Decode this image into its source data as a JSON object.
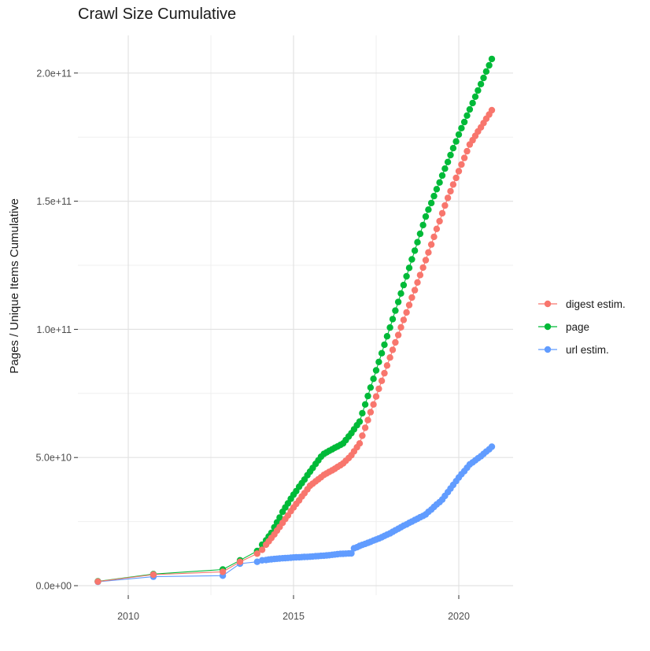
{
  "chart_data": {
    "type": "scatter",
    "title": "Crawl Size Cumulative",
    "xlabel": "",
    "ylabel": "Pages / Unique Items Cumulative",
    "y_value_unit": "1e9 (billions of pages / unique items)",
    "xlim": [
      2008.5,
      2021.6
    ],
    "ylim": [
      -8,
      213
    ],
    "grid": true,
    "legend_position": "right",
    "x_ticks": {
      "values": [
        2010,
        2015,
        2020
      ],
      "labels": [
        "2010",
        "2015",
        "2020"
      ]
    },
    "x_minor": [
      2012.5,
      2017.5
    ],
    "y_ticks": {
      "values": [
        0,
        50,
        100,
        150,
        200
      ],
      "labels": [
        "0.0e+00",
        "5.0e+10",
        "1.0e+11",
        "1.5e+11",
        "2.0e+11"
      ]
    },
    "y_minor": [
      25,
      75,
      125,
      175
    ],
    "series": [
      {
        "name": "digest estim.",
        "color": "#F8766D",
        "points": [
          [
            2009.08,
            1.6
          ],
          [
            2010.76,
            4.3
          ],
          [
            2012.86,
            5.4
          ],
          [
            2013.38,
            9.3
          ],
          [
            2013.9,
            12.5
          ],
          [
            2014.05,
            14
          ],
          [
            2014.17,
            16
          ],
          [
            2014.25,
            17.3
          ],
          [
            2014.33,
            18.6
          ],
          [
            2014.42,
            20
          ],
          [
            2014.5,
            21.5
          ],
          [
            2014.58,
            22.9
          ],
          [
            2014.67,
            24.5
          ],
          [
            2014.75,
            26
          ],
          [
            2014.83,
            27.4
          ],
          [
            2014.92,
            29.1
          ],
          [
            2015,
            30.5
          ],
          [
            2015.08,
            31.9
          ],
          [
            2015.17,
            33.3
          ],
          [
            2015.25,
            34.8
          ],
          [
            2015.33,
            36.1
          ],
          [
            2015.42,
            37.6
          ],
          [
            2015.5,
            39
          ],
          [
            2015.58,
            39.8
          ],
          [
            2015.67,
            40.7
          ],
          [
            2015.75,
            41.5
          ],
          [
            2015.83,
            42.3
          ],
          [
            2015.92,
            43.2
          ],
          [
            2016,
            43.8
          ],
          [
            2016.08,
            44.4
          ],
          [
            2016.17,
            45
          ],
          [
            2016.25,
            45.6
          ],
          [
            2016.33,
            46.3
          ],
          [
            2016.42,
            47
          ],
          [
            2016.5,
            47.7
          ],
          [
            2016.58,
            48.7
          ],
          [
            2016.67,
            49.8
          ],
          [
            2016.75,
            50.9
          ],
          [
            2016.83,
            52.4
          ],
          [
            2016.92,
            54
          ],
          [
            2017,
            55.5
          ],
          [
            2017.08,
            58.5
          ],
          [
            2017.17,
            61.6
          ],
          [
            2017.25,
            64.6
          ],
          [
            2017.33,
            67.7
          ],
          [
            2017.42,
            70.7
          ],
          [
            2017.5,
            73.8
          ],
          [
            2017.58,
            76.8
          ],
          [
            2017.67,
            79.9
          ],
          [
            2017.75,
            82.9
          ],
          [
            2017.83,
            85.9
          ],
          [
            2017.92,
            89
          ],
          [
            2018,
            92
          ],
          [
            2018.08,
            94.9
          ],
          [
            2018.17,
            97.8
          ],
          [
            2018.25,
            100.8
          ],
          [
            2018.33,
            103.7
          ],
          [
            2018.42,
            106.6
          ],
          [
            2018.5,
            109.5
          ],
          [
            2018.58,
            112.4
          ],
          [
            2018.67,
            115.3
          ],
          [
            2018.75,
            118.3
          ],
          [
            2018.83,
            121.2
          ],
          [
            2018.92,
            124.1
          ],
          [
            2019,
            127
          ],
          [
            2019.08,
            130
          ],
          [
            2019.17,
            133.1
          ],
          [
            2019.25,
            136.1
          ],
          [
            2019.33,
            139.2
          ],
          [
            2019.42,
            142.2
          ],
          [
            2019.5,
            145.3
          ],
          [
            2019.58,
            148.3
          ],
          [
            2019.67,
            151.3
          ],
          [
            2019.75,
            153.9
          ],
          [
            2019.83,
            156.5
          ],
          [
            2019.92,
            159.1
          ],
          [
            2020,
            161.7
          ],
          [
            2020.08,
            164.3
          ],
          [
            2020.17,
            166.9
          ],
          [
            2020.25,
            169.5
          ],
          [
            2020.33,
            172.1
          ],
          [
            2020.42,
            173.8
          ],
          [
            2020.5,
            175.5
          ],
          [
            2020.58,
            177.2
          ],
          [
            2020.67,
            178.8
          ],
          [
            2020.75,
            180.5
          ],
          [
            2020.83,
            182.2
          ],
          [
            2020.92,
            183.8
          ],
          [
            2021,
            185.5
          ]
        ]
      },
      {
        "name": "page",
        "color": "#00BA38",
        "points": [
          [
            2009.08,
            1.7
          ],
          [
            2010.76,
            4.5
          ],
          [
            2012.86,
            6.3
          ],
          [
            2013.38,
            9.9
          ],
          [
            2013.9,
            13.5
          ],
          [
            2014.05,
            16
          ],
          [
            2014.17,
            17.7
          ],
          [
            2014.25,
            19.2
          ],
          [
            2014.33,
            20.6
          ],
          [
            2014.42,
            22.8
          ],
          [
            2014.5,
            24.7
          ],
          [
            2014.58,
            26.6
          ],
          [
            2014.67,
            28.8
          ],
          [
            2014.75,
            30.5
          ],
          [
            2014.83,
            32.1
          ],
          [
            2014.92,
            33.9
          ],
          [
            2015,
            35.5
          ],
          [
            2015.08,
            36.9
          ],
          [
            2015.17,
            38.6
          ],
          [
            2015.25,
            40
          ],
          [
            2015.33,
            41.4
          ],
          [
            2015.42,
            43.1
          ],
          [
            2015.5,
            44.5
          ],
          [
            2015.58,
            45.9
          ],
          [
            2015.67,
            47.5
          ],
          [
            2015.75,
            48.9
          ],
          [
            2015.83,
            50.3
          ],
          [
            2015.92,
            51.4
          ],
          [
            2016,
            52
          ],
          [
            2016.08,
            52.6
          ],
          [
            2016.17,
            53.2
          ],
          [
            2016.25,
            53.8
          ],
          [
            2016.33,
            54.3
          ],
          [
            2016.42,
            54.9
          ],
          [
            2016.5,
            55.5
          ],
          [
            2016.58,
            56.8
          ],
          [
            2016.67,
            58.2
          ],
          [
            2016.75,
            59.5
          ],
          [
            2016.83,
            61
          ],
          [
            2016.92,
            62.6
          ],
          [
            2017,
            64
          ],
          [
            2017.08,
            67.3
          ],
          [
            2017.17,
            70.7
          ],
          [
            2017.25,
            74
          ],
          [
            2017.33,
            77.3
          ],
          [
            2017.42,
            80.7
          ],
          [
            2017.5,
            84
          ],
          [
            2017.58,
            87.3
          ],
          [
            2017.67,
            90.7
          ],
          [
            2017.75,
            94
          ],
          [
            2017.83,
            97.3
          ],
          [
            2017.92,
            100.7
          ],
          [
            2018,
            104
          ],
          [
            2018.08,
            107.3
          ],
          [
            2018.17,
            110.7
          ],
          [
            2018.25,
            114
          ],
          [
            2018.33,
            117.3
          ],
          [
            2018.42,
            120.7
          ],
          [
            2018.5,
            124
          ],
          [
            2018.58,
            127.3
          ],
          [
            2018.67,
            130.7
          ],
          [
            2018.75,
            134
          ],
          [
            2018.83,
            137.3
          ],
          [
            2018.92,
            140.7
          ],
          [
            2019,
            144
          ],
          [
            2019.08,
            146.7
          ],
          [
            2019.17,
            149.3
          ],
          [
            2019.25,
            152
          ],
          [
            2019.33,
            154.7
          ],
          [
            2019.42,
            157.3
          ],
          [
            2019.5,
            160
          ],
          [
            2019.58,
            162.7
          ],
          [
            2019.67,
            165.3
          ],
          [
            2019.75,
            168
          ],
          [
            2019.83,
            170.7
          ],
          [
            2019.92,
            173.3
          ],
          [
            2020,
            176
          ],
          [
            2020.08,
            178.5
          ],
          [
            2020.17,
            180.9
          ],
          [
            2020.25,
            183.4
          ],
          [
            2020.33,
            185.8
          ],
          [
            2020.42,
            188.3
          ],
          [
            2020.5,
            190.8
          ],
          [
            2020.58,
            193.2
          ],
          [
            2020.67,
            195.7
          ],
          [
            2020.75,
            198.1
          ],
          [
            2020.83,
            200.6
          ],
          [
            2020.92,
            203
          ],
          [
            2021,
            205.5
          ]
        ]
      },
      {
        "name": "url estim.",
        "color": "#619CFF",
        "points": [
          [
            2009.08,
            1.5
          ],
          [
            2010.76,
            3.5
          ],
          [
            2012.86,
            3.9
          ],
          [
            2013.38,
            8.6
          ],
          [
            2013.9,
            9.3
          ],
          [
            2014.05,
            9.9
          ],
          [
            2014.17,
            10
          ],
          [
            2014.25,
            10.2
          ],
          [
            2014.33,
            10.3
          ],
          [
            2014.42,
            10.4
          ],
          [
            2014.5,
            10.5
          ],
          [
            2014.58,
            10.6
          ],
          [
            2014.67,
            10.7
          ],
          [
            2014.75,
            10.75
          ],
          [
            2014.83,
            10.8
          ],
          [
            2014.92,
            10.9
          ],
          [
            2015,
            11
          ],
          [
            2015.08,
            11.05
          ],
          [
            2015.17,
            11.1
          ],
          [
            2015.25,
            11.15
          ],
          [
            2015.33,
            11.2
          ],
          [
            2015.42,
            11.25
          ],
          [
            2015.5,
            11.3
          ],
          [
            2015.58,
            11.4
          ],
          [
            2015.67,
            11.5
          ],
          [
            2015.75,
            11.55
          ],
          [
            2015.83,
            11.65
          ],
          [
            2015.92,
            11.7
          ],
          [
            2016,
            11.8
          ],
          [
            2016.08,
            11.9
          ],
          [
            2016.17,
            12.05
          ],
          [
            2016.25,
            12.15
          ],
          [
            2016.33,
            12.3
          ],
          [
            2016.42,
            12.4
          ],
          [
            2016.5,
            12.45
          ],
          [
            2016.58,
            12.5
          ],
          [
            2016.67,
            12.55
          ],
          [
            2016.75,
            12.6
          ],
          [
            2016.83,
            14.6
          ],
          [
            2016.92,
            15
          ],
          [
            2017,
            15.5
          ],
          [
            2017.08,
            15.9
          ],
          [
            2017.17,
            16.3
          ],
          [
            2017.25,
            16.7
          ],
          [
            2017.33,
            17.1
          ],
          [
            2017.42,
            17.6
          ],
          [
            2017.5,
            18
          ],
          [
            2017.58,
            18.4
          ],
          [
            2017.67,
            18.9
          ],
          [
            2017.75,
            19.4
          ],
          [
            2017.83,
            19.9
          ],
          [
            2017.92,
            20.4
          ],
          [
            2018,
            21
          ],
          [
            2018.08,
            21.6
          ],
          [
            2018.17,
            22.2
          ],
          [
            2018.25,
            22.8
          ],
          [
            2018.33,
            23.4
          ],
          [
            2018.42,
            23.9
          ],
          [
            2018.5,
            24.5
          ],
          [
            2018.58,
            25
          ],
          [
            2018.67,
            25.6
          ],
          [
            2018.75,
            26.1
          ],
          [
            2018.83,
            26.7
          ],
          [
            2018.92,
            27.2
          ],
          [
            2019,
            27.8
          ],
          [
            2019.08,
            28.8
          ],
          [
            2019.17,
            29.7
          ],
          [
            2019.25,
            30.7
          ],
          [
            2019.33,
            31.7
          ],
          [
            2019.42,
            32.6
          ],
          [
            2019.5,
            33.6
          ],
          [
            2019.58,
            35
          ],
          [
            2019.67,
            36.5
          ],
          [
            2019.75,
            37.9
          ],
          [
            2019.83,
            39.3
          ],
          [
            2019.92,
            40.8
          ],
          [
            2020,
            42.2
          ],
          [
            2020.08,
            43.5
          ],
          [
            2020.17,
            44.7
          ],
          [
            2020.25,
            46
          ],
          [
            2020.33,
            47.3
          ],
          [
            2020.42,
            48.1
          ],
          [
            2020.5,
            48.9
          ],
          [
            2020.58,
            49.7
          ],
          [
            2020.67,
            50.5
          ],
          [
            2020.75,
            51.4
          ],
          [
            2020.83,
            52.3
          ],
          [
            2020.92,
            53.2
          ],
          [
            2021,
            54.2
          ]
        ]
      }
    ]
  },
  "colors": {
    "background": "#ffffff",
    "grid_major": "#e2e2e2",
    "grid_minor": "#efefef",
    "tick_mark": "#333333",
    "tick_label": "#4d4d4d",
    "text": "#1a1a1a"
  }
}
